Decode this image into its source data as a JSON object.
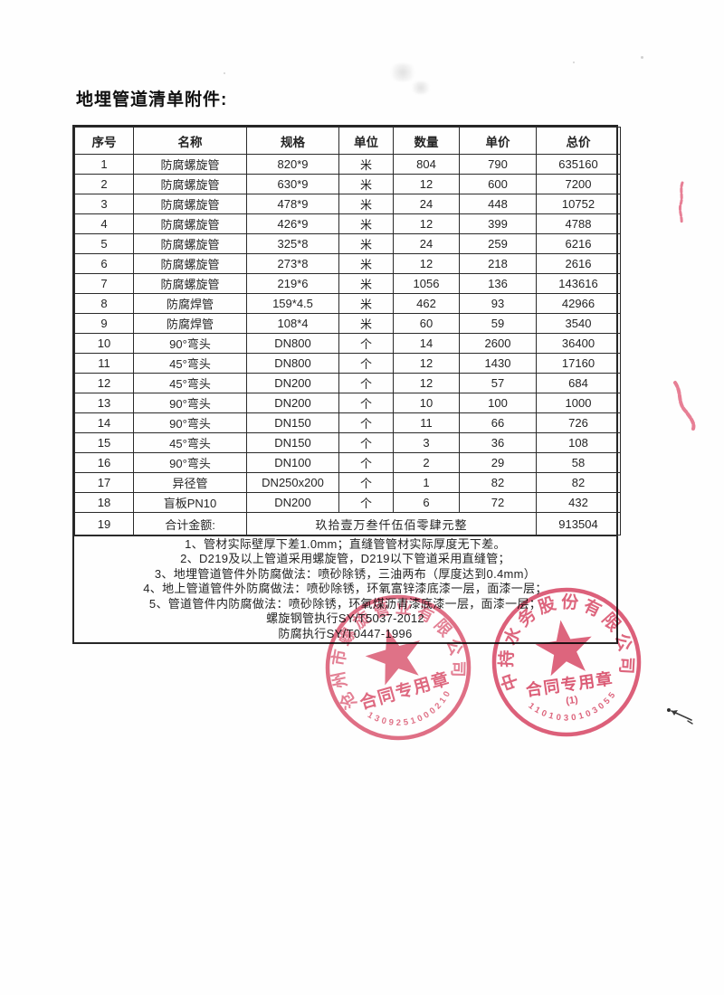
{
  "page": {
    "title": "地埋管道清单附件:"
  },
  "table": {
    "columns": [
      "序号",
      "名称",
      "规格",
      "单位",
      "数量",
      "单价",
      "总价"
    ],
    "rows": [
      [
        "1",
        "防腐螺旋管",
        "820*9",
        "米",
        "804",
        "790",
        "635160"
      ],
      [
        "2",
        "防腐螺旋管",
        "630*9",
        "米",
        "12",
        "600",
        "7200"
      ],
      [
        "3",
        "防腐螺旋管",
        "478*9",
        "米",
        "24",
        "448",
        "10752"
      ],
      [
        "4",
        "防腐螺旋管",
        "426*9",
        "米",
        "12",
        "399",
        "4788"
      ],
      [
        "5",
        "防腐螺旋管",
        "325*8",
        "米",
        "24",
        "259",
        "6216"
      ],
      [
        "6",
        "防腐螺旋管",
        "273*8",
        "米",
        "12",
        "218",
        "2616"
      ],
      [
        "7",
        "防腐螺旋管",
        "219*6",
        "米",
        "1056",
        "136",
        "143616"
      ],
      [
        "8",
        "防腐焊管",
        "159*4.5",
        "米",
        "462",
        "93",
        "42966"
      ],
      [
        "9",
        "防腐焊管",
        "108*4",
        "米",
        "60",
        "59",
        "3540"
      ],
      [
        "10",
        "90°弯头",
        "DN800",
        "个",
        "14",
        "2600",
        "36400"
      ],
      [
        "11",
        "45°弯头",
        "DN800",
        "个",
        "12",
        "1430",
        "17160"
      ],
      [
        "12",
        "45°弯头",
        "DN200",
        "个",
        "12",
        "57",
        "684"
      ],
      [
        "13",
        "90°弯头",
        "DN200",
        "个",
        "10",
        "100",
        "1000"
      ],
      [
        "14",
        "90°弯头",
        "DN150",
        "个",
        "11",
        "66",
        "726"
      ],
      [
        "15",
        "45°弯头",
        "DN150",
        "个",
        "3",
        "36",
        "108"
      ],
      [
        "16",
        "90°弯头",
        "DN100",
        "个",
        "2",
        "29",
        "58"
      ],
      [
        "17",
        "异径管",
        "DN250x200",
        "个",
        "1",
        "82",
        "82"
      ],
      [
        "18",
        "盲板PN10",
        "DN200",
        "个",
        "6",
        "72",
        "432"
      ]
    ],
    "total_row": {
      "seq": "19",
      "label": "合计金额:",
      "amount_in_words": "玖拾壹万叁仟伍佰零肆元整",
      "total": "913504"
    }
  },
  "notes": [
    "1、管材实际壁厚下差1.0mm；直缝管管材实际厚度无下差。",
    "2、D219及以上管道采用螺旋管，D219以下管道采用直缝管；",
    "3、地埋管道管件外防腐做法：喷砂除锈，三油两布（厚度达到0.4mm）",
    "4、地上管道管件外防腐做法：喷砂除锈，环氧富锌漆底漆一层，面漆一层；",
    "5、管道管件内防腐做法：喷砂除锈，环氧煤沥青漆底漆一层，面漆一层；",
    "螺旋钢管执行SY/T5037-2012",
    "防腐执行SY/T0447-1996"
  ],
  "stamps": {
    "color": "#d6405e",
    "left": {
      "company": "沧州市螺旋管业有限公司",
      "line": "合同专用章",
      "serial": "1309251000210"
    },
    "right": {
      "company": "中持水务股份有限公司",
      "line": "合同专用章",
      "sub": "(1)",
      "serial": "1101030103055"
    }
  }
}
